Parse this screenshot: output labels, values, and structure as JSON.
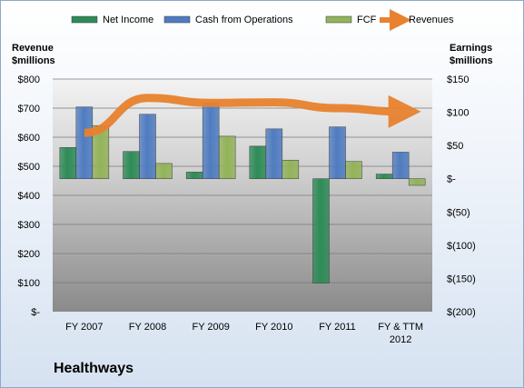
{
  "company": "Healthways",
  "chart_data": {
    "type": "bar",
    "categories": [
      "FY 2007",
      "FY 2008",
      "FY 2009",
      "FY 2010",
      "FY 2011",
      "FY & TTM 2012"
    ],
    "legend": [
      "Net Income",
      "Cash from Operations",
      "FCF",
      "Revenues"
    ],
    "left_axis": {
      "title": [
        "Revenue",
        "$millions"
      ],
      "ticks": [
        "$-",
        "$100",
        "$200",
        "$300",
        "$400",
        "$500",
        "$600",
        "$700",
        "$800"
      ],
      "ylim": [
        0,
        800
      ]
    },
    "right_axis": {
      "title": [
        "Earnings",
        "$millions"
      ],
      "ticks": [
        "$(200)",
        "$(150)",
        "$(100)",
        "$(50)",
        "$-",
        "$50",
        "$100",
        "$150"
      ],
      "ylim": [
        -200,
        150
      ]
    },
    "series": [
      {
        "name": "Net Income",
        "axis": "right",
        "type": "bar",
        "color": "#2e8b57",
        "values": [
          47,
          41,
          10,
          49,
          -157,
          7
        ]
      },
      {
        "name": "Cash from Operations",
        "axis": "right",
        "type": "bar",
        "color": "#4f7cc0",
        "values": [
          108,
          97,
          114,
          75,
          78,
          40
        ]
      },
      {
        "name": "FCF",
        "axis": "right",
        "type": "bar",
        "color": "#93b35a",
        "values": [
          80,
          23,
          64,
          28,
          26,
          -10
        ]
      },
      {
        "name": "Revenues",
        "axis": "left",
        "type": "line",
        "color": "#e8822f",
        "values": [
          615,
          735,
          718,
          720,
          700,
          688
        ]
      }
    ],
    "grid": true,
    "legend_position": "top"
  }
}
